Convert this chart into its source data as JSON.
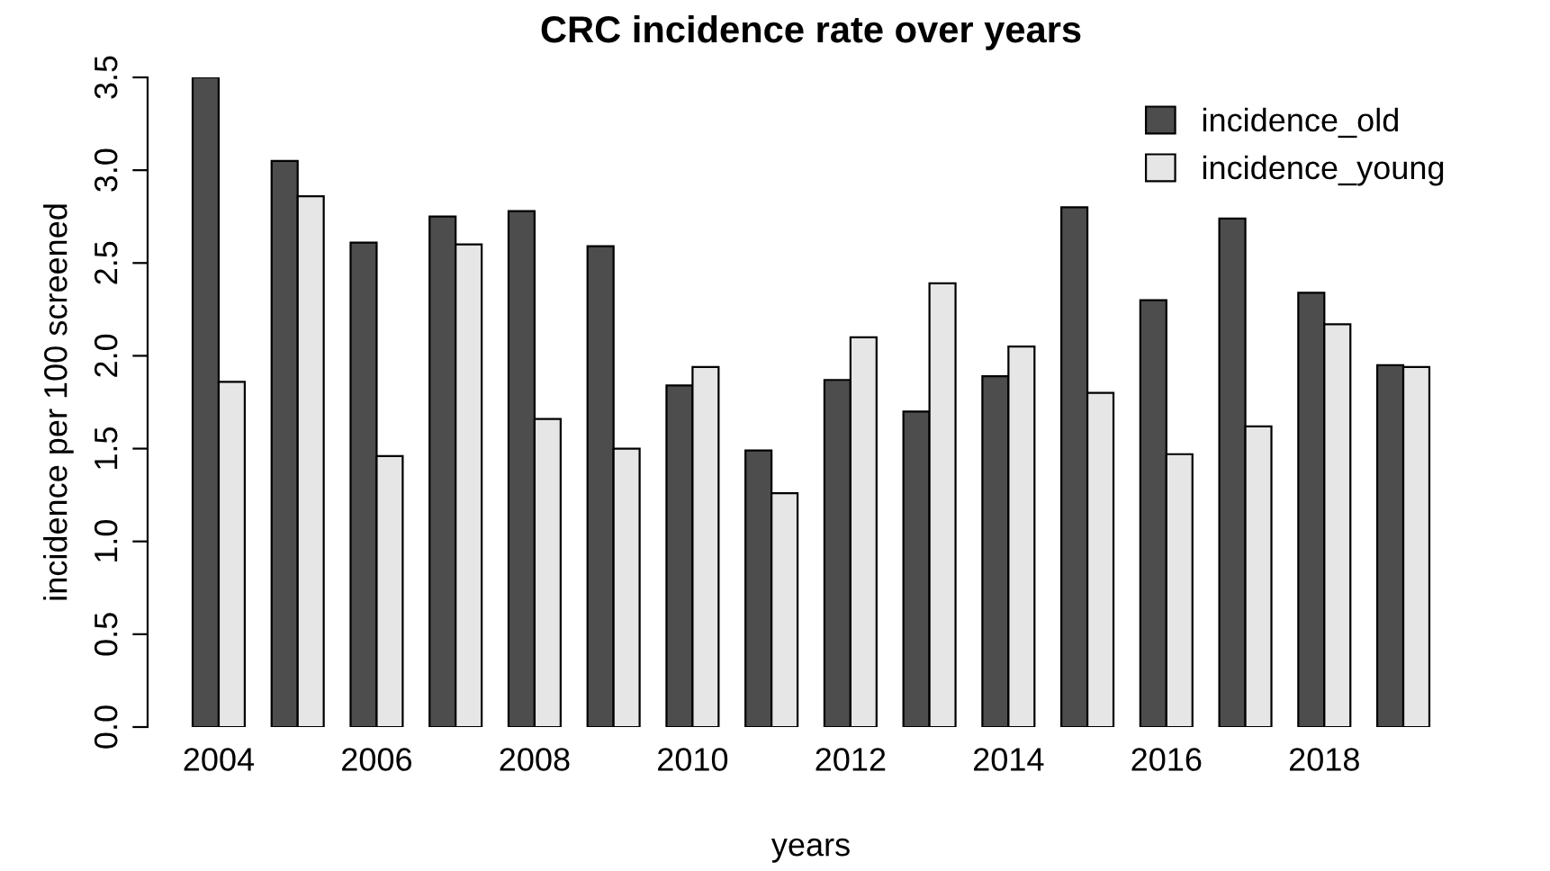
{
  "chart_data": {
    "type": "bar",
    "title": "CRC incidence rate over years",
    "xlabel": "years",
    "ylabel": "incidence per 100 screened",
    "categories": [
      "2004",
      null,
      "2006",
      null,
      "2008",
      null,
      "2010",
      null,
      "2012",
      null,
      "2014",
      null,
      "2016",
      null,
      "2018",
      null
    ],
    "series": [
      {
        "name": "incidence_old",
        "color": "#4d4d4d",
        "values": [
          3.5,
          3.05,
          2.61,
          2.75,
          2.78,
          2.59,
          1.84,
          1.49,
          1.87,
          1.7,
          1.89,
          2.8,
          2.3,
          2.74,
          2.34,
          1.95
        ]
      },
      {
        "name": "incidence_young",
        "color": "#e6e6e6",
        "values": [
          1.86,
          2.86,
          1.46,
          2.6,
          1.66,
          1.5,
          1.94,
          1.26,
          2.1,
          2.39,
          2.05,
          1.8,
          1.47,
          1.62,
          2.17,
          1.94
        ]
      }
    ],
    "ylim": [
      0,
      3.5
    ],
    "yticks": [
      {
        "value": 0,
        "label": "0.0"
      },
      0.5,
      {
        "value": 1,
        "label": "1.0"
      },
      1.5,
      {
        "value": 2,
        "label": "2.0"
      },
      2.5,
      {
        "value": 3,
        "label": "3.0"
      },
      3.5
    ],
    "grid": false,
    "legend": "top right"
  }
}
